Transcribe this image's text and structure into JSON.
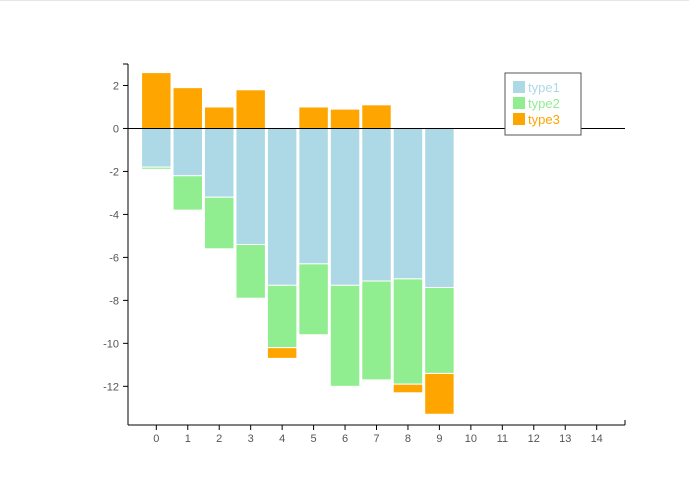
{
  "chart_data": {
    "type": "bar",
    "stacked": true,
    "x": [
      0,
      1,
      2,
      3,
      4,
      5,
      6,
      7,
      8,
      9
    ],
    "x_ticks": [
      "0",
      "1",
      "2",
      "3",
      "4",
      "5",
      "6",
      "7",
      "8",
      "9",
      "10",
      "11",
      "12",
      "13",
      "14"
    ],
    "xlim": [
      -0.9,
      14.9
    ],
    "y_ticks": [
      "2",
      "0",
      "-2",
      "-4",
      "-6",
      "-8",
      "-10",
      "-12"
    ],
    "y_tick_values": [
      2,
      0,
      -2,
      -4,
      -6,
      -8,
      -10,
      -12
    ],
    "ylim": [
      -13.8,
      3
    ],
    "series": [
      {
        "name": "type1",
        "color": "#add8e6",
        "values": [
          -1.8,
          -2.2,
          -3.2,
          -5.4,
          -7.3,
          -6.3,
          -7.3,
          -7.1,
          -7.0,
          -7.4
        ]
      },
      {
        "name": "type2",
        "color": "#90ee90",
        "values": [
          -0.1,
          -1.6,
          -2.4,
          -2.5,
          -2.9,
          -3.3,
          -4.7,
          -4.6,
          -4.9,
          -4.0
        ]
      },
      {
        "name": "type3",
        "color": "#ffa500",
        "values": [
          2.6,
          1.9,
          1.0,
          1.8,
          -0.5,
          1.0,
          0.9,
          1.1,
          -0.4,
          -1.9
        ]
      }
    ],
    "title": "",
    "xlabel": "",
    "ylabel": "",
    "legend_position": "top-right",
    "grid": false
  }
}
